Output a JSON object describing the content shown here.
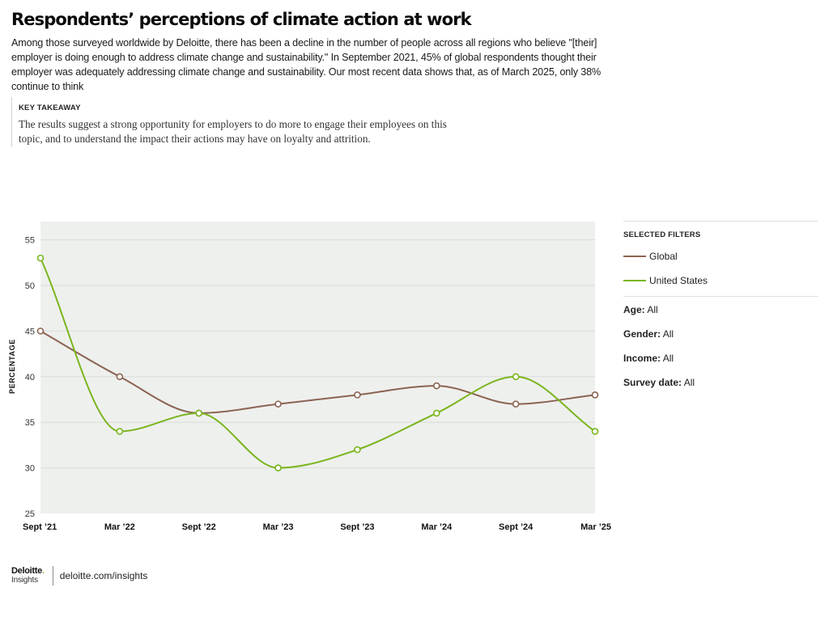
{
  "header": {
    "title": "Respondents’ perceptions of climate action at work",
    "intro": "Among those surveyed worldwide by Deloitte, there has been a decline in the number of people across all regions who believe \"[their] employer is doing enough to address climate change and sustainability.\" In September 2021, 45% of global respondents thought their employer was adequately addressing climate change and sustainability. Our most recent data shows that, as of March 2025, only 38% continue to think"
  },
  "takeaway": {
    "label": "KEY TAKEAWAY",
    "text": "The results suggest a strong opportunity for employers to do more to engage their employees on this topic, and to understand the impact their actions may have on loyalty and attrition."
  },
  "panel": {
    "heading": "SELECTED FILTERS",
    "legend": [
      {
        "label": "Global",
        "color": "#8b6352"
      },
      {
        "label": "United States",
        "color": "#7ab51d"
      }
    ],
    "filters": [
      {
        "key": "Age:",
        "value": "All"
      },
      {
        "key": "Gender:",
        "value": "All"
      },
      {
        "key": "Income:",
        "value": "All"
      },
      {
        "key": "Survey date:",
        "value": "All"
      }
    ]
  },
  "footer": {
    "brand": "Deloitte",
    "brand_dot": ".",
    "sub": "Insights",
    "link": "deloitte.com/insights"
  },
  "chart_data": {
    "type": "line",
    "ylabel": "PERCENTAGE",
    "xlabel": "",
    "ylim": [
      25,
      57
    ],
    "yticks": [
      25,
      30,
      35,
      40,
      45,
      50,
      55
    ],
    "grid": true,
    "categories": [
      "Sept ’21",
      "Mar ’22",
      "Sept ’22",
      "Mar ’23",
      "Sept ’23",
      "Mar ’24",
      "Sept ’24",
      "Mar ’25"
    ],
    "series": [
      {
        "name": "Global",
        "color": "#8b6352",
        "values": [
          45,
          40,
          36,
          37,
          38,
          39,
          37,
          38
        ]
      },
      {
        "name": "United States",
        "color": "#7ab51d",
        "values": [
          53,
          34,
          36,
          30,
          32,
          36,
          40,
          34
        ]
      }
    ],
    "colors": {
      "plot_background": "#eef0ee",
      "gridline": "#dadcda"
    }
  }
}
